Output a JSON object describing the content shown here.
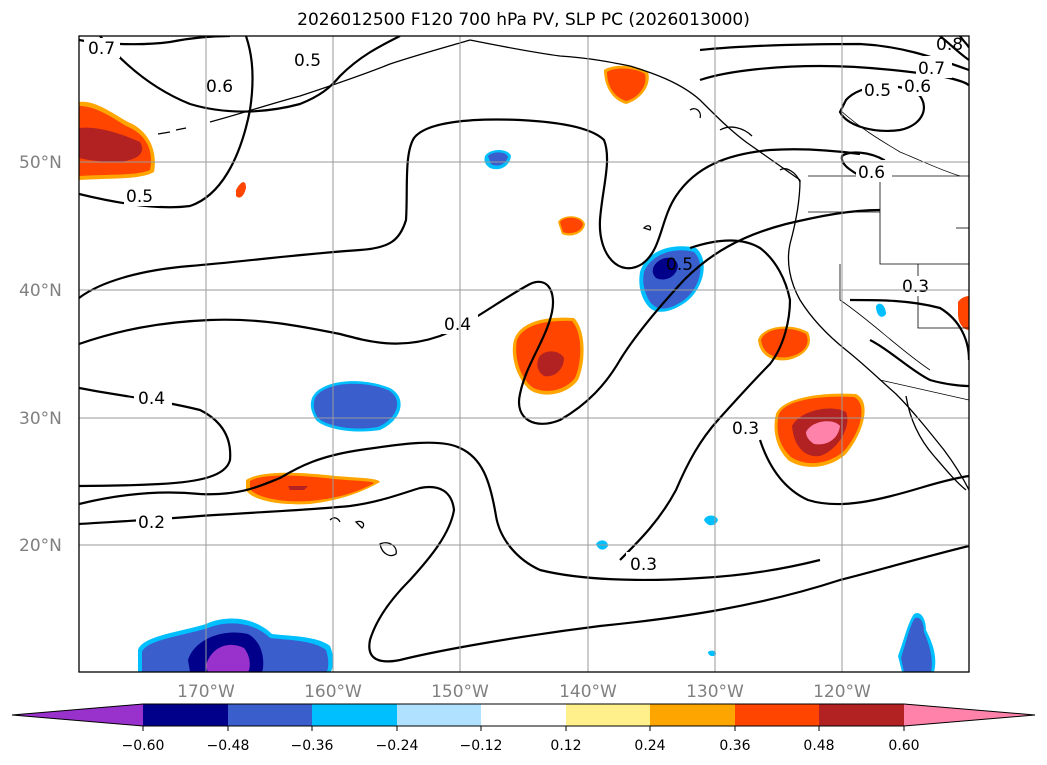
{
  "title": "2026012500 F120 700 hPa PV, SLP PC (2026013000)",
  "lat_labels": [
    "50°N",
    "40°N",
    "30°N",
    "20°N"
  ],
  "lon_labels": [
    "170°W",
    "160°W",
    "150°W",
    "140°W",
    "130°W",
    "120°W"
  ],
  "colorbar": {
    "colors": [
      "#9932cc",
      "#00008b",
      "#3a5fcd",
      "#00bfff",
      "#b0e2ff",
      "#ffffff",
      "#fff08c",
      "#ffa500",
      "#ff4500",
      "#b22222",
      "#ff82ab"
    ],
    "tick_labels": [
      "−0.60",
      "−0.48",
      "−0.36",
      "−0.24",
      "−0.12",
      "0.12",
      "0.24",
      "0.36",
      "0.48",
      "0.60"
    ]
  },
  "contour_labels": [
    "0.7",
    "0.5",
    "0.6",
    "0.5",
    "0.4",
    "0.4",
    "0.2",
    "0.5",
    "0.3",
    "0.3",
    "0.3",
    "0.5",
    "0.6",
    "0.7",
    "0.6",
    "0.8"
  ]
}
